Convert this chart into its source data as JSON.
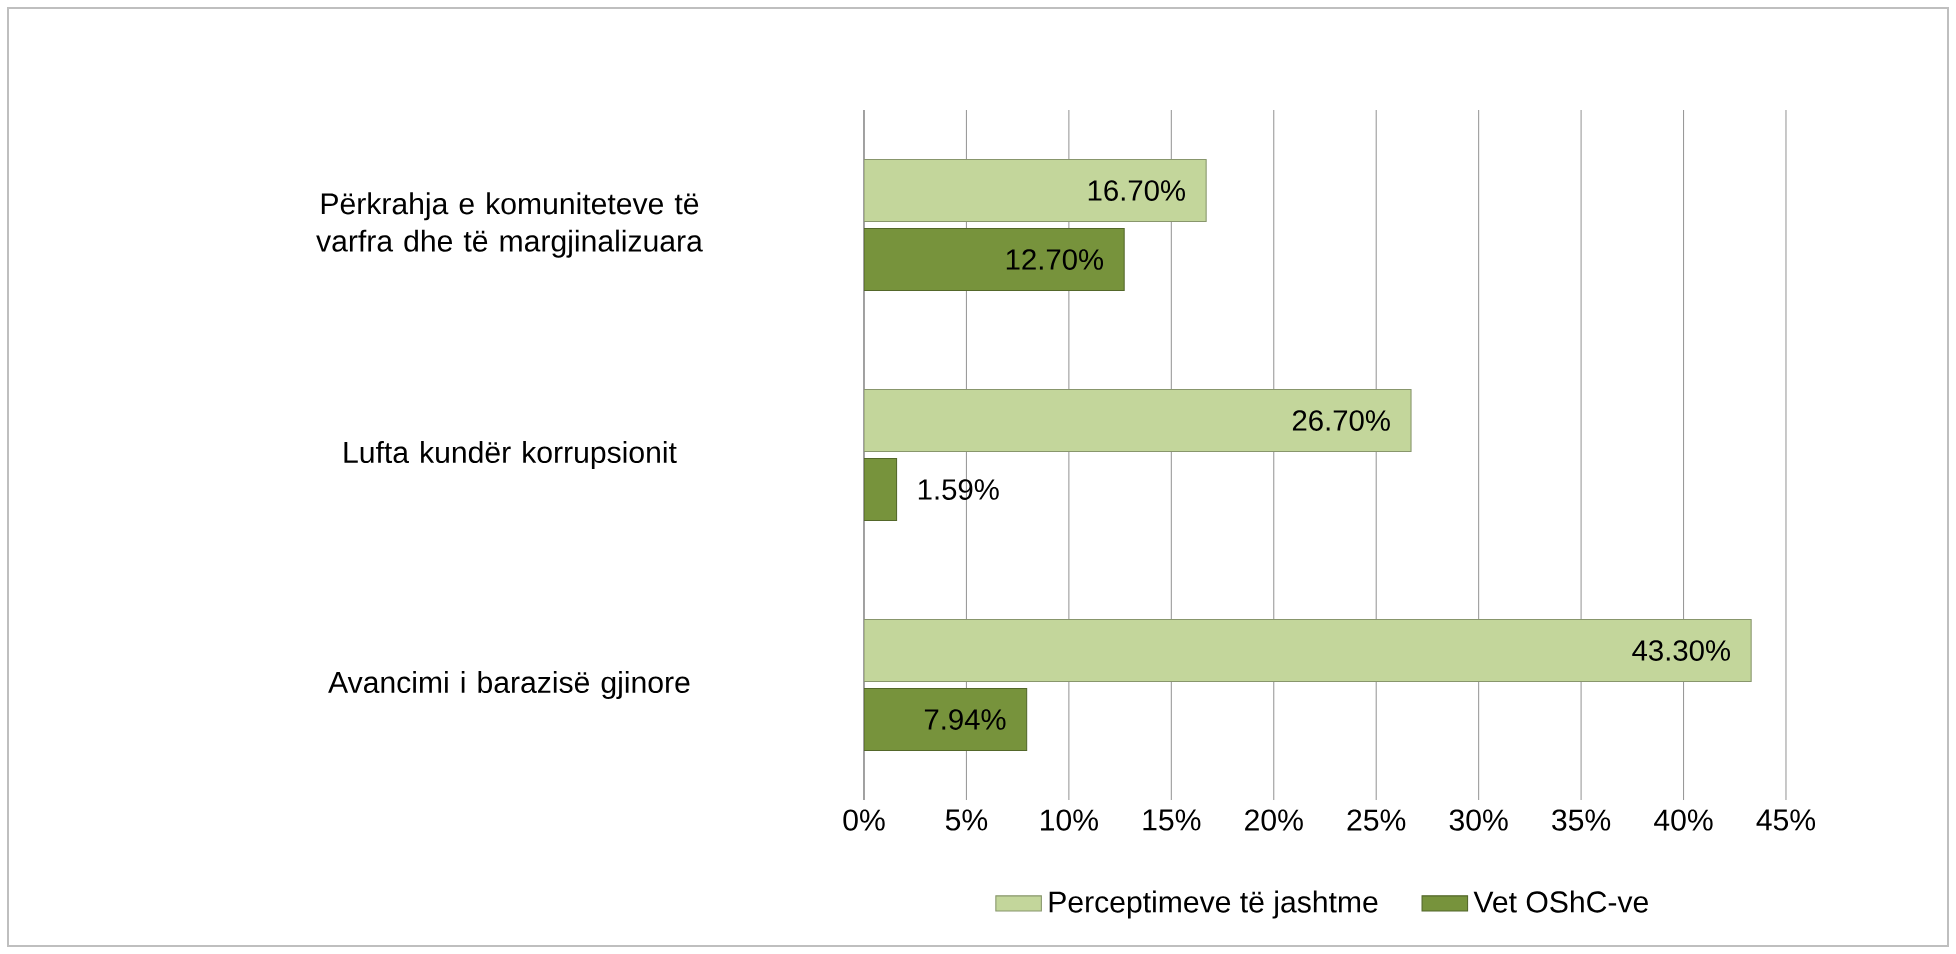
{
  "chart_data": {
    "type": "bar",
    "orientation": "horizontal",
    "categories": [
      "Përkrahja e komuniteteve të varfra dhe të margjinalizuara",
      "Lufta kundër korrupsionit",
      "Avancimi i barazisë gjinore"
    ],
    "series": [
      {
        "name": "Perceptimeve të jashtme",
        "color": "#c3d69b",
        "values": [
          16.7,
          26.7,
          43.3
        ],
        "value_labels": [
          "16.70%",
          "26.70%",
          "43.30%"
        ]
      },
      {
        "name": "Vet OShC-ve",
        "color": "#77933c",
        "values": [
          12.7,
          1.59,
          7.94
        ],
        "value_labels": [
          "12.70%",
          "1.59%",
          "7.94%"
        ]
      }
    ],
    "xlim": [
      0,
      45
    ],
    "xticks": [
      {
        "value": 0,
        "label": "0%"
      },
      {
        "value": 5,
        "label": "5%"
      },
      {
        "value": 10,
        "label": "10%"
      },
      {
        "value": 15,
        "label": "15%"
      },
      {
        "value": 20,
        "label": "20%"
      },
      {
        "value": 25,
        "label": "25%"
      },
      {
        "value": 30,
        "label": "30%"
      },
      {
        "value": 35,
        "label": "35%"
      },
      {
        "value": 40,
        "label": "40%"
      },
      {
        "value": 45,
        "label": "45%"
      }
    ],
    "grid": "x",
    "legend": "bottom"
  }
}
